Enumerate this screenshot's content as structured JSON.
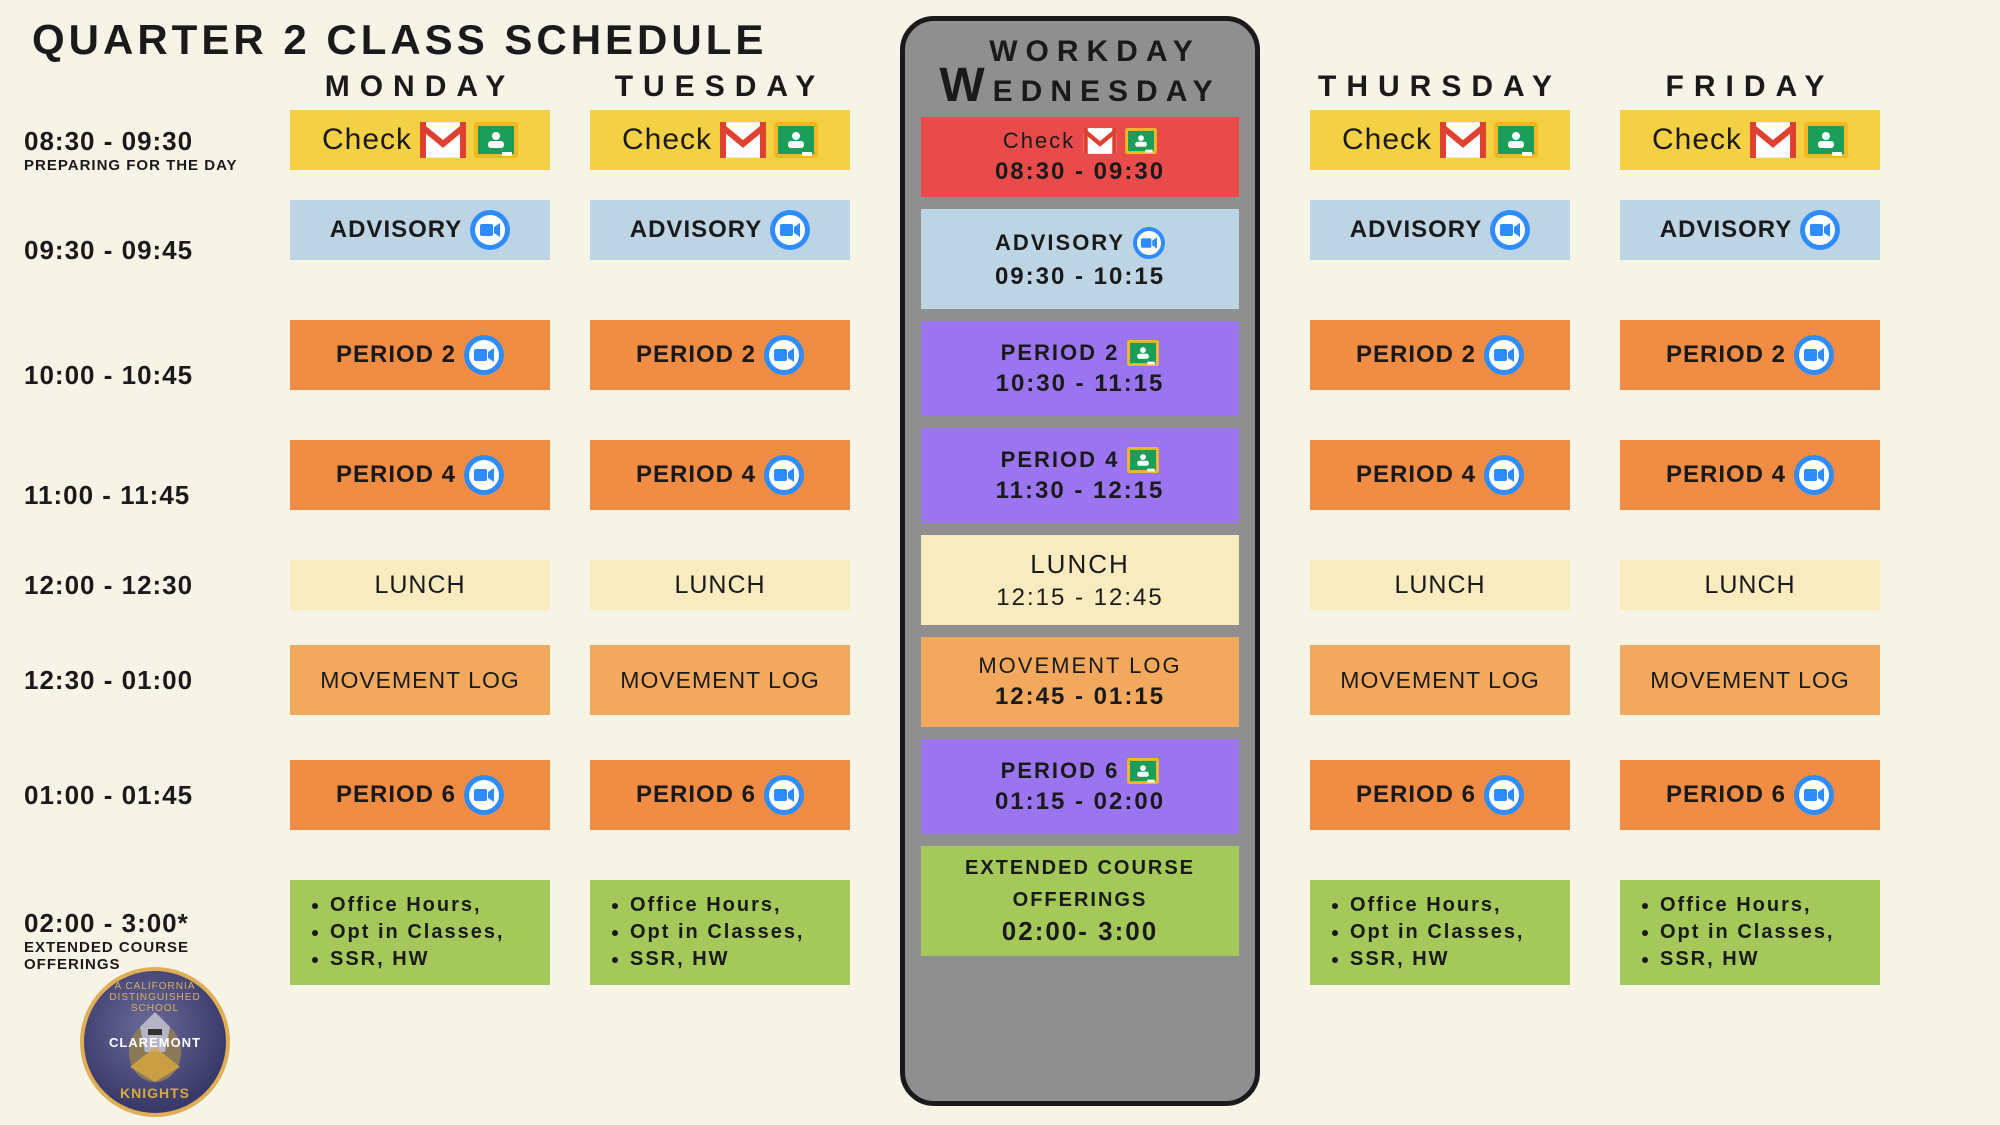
{
  "title": "QUARTER  2  CLASS SCHEDULE",
  "background_color": "#f6f3e7",
  "times": [
    {
      "t": "08:30 - 09:30",
      "sub": "PREPARING FOR THE DAY"
    },
    {
      "t": "09:30 - 09:45",
      "sub": ""
    },
    {
      "t": "10:00 - 10:45",
      "sub": ""
    },
    {
      "t": "11:00 - 11:45",
      "sub": ""
    },
    {
      "t": "12:00 - 12:30",
      "sub": ""
    },
    {
      "t": "12:30 - 01:00",
      "sub": ""
    },
    {
      "t": "01:00 - 01:45",
      "sub": ""
    },
    {
      "t": "02:00 - 3:00*",
      "sub": "EXTENDED COURSE OFFERINGS"
    }
  ],
  "days": {
    "mon": "MONDAY",
    "tue": "TUESDAY",
    "thu": "THURSDAY",
    "fri": "FRIDAY"
  },
  "wed": {
    "line1": "WORKDAY",
    "line2": "EDNESDAY",
    "rows": {
      "check": {
        "label": "Check",
        "time": "08:30 - 09:30",
        "bg": "#e94b4b"
      },
      "advisory": {
        "label": "ADVISORY",
        "time": "09:30 - 10:15",
        "bg": "#bdd4e4"
      },
      "p2": {
        "label": "PERIOD 2",
        "time": "10:30 - 11:15",
        "bg": "#9b75f0"
      },
      "p4": {
        "label": "PERIOD 4",
        "time": "11:30 - 12:15",
        "bg": "#9b75f0"
      },
      "lunch": {
        "label": "LUNCH",
        "time": "12:15 - 12:45",
        "bg": "#f9ebc0"
      },
      "move": {
        "label": "MOVEMENT LOG",
        "time": "12:45 - 01:15",
        "bg": "#f3a95d"
      },
      "p6": {
        "label": "PERIOD 6",
        "time": "01:15 - 02:00",
        "bg": "#9b75f0"
      },
      "ext": {
        "label1": "EXTENDED COURSE",
        "label2": "OFFERINGS",
        "time": "02:00- 3:00",
        "bg": "#a4c85a"
      }
    }
  },
  "row_labels": {
    "check": "Check",
    "advisory": "ADVISORY",
    "p2": "PERIOD 2",
    "p4": "PERIOD 4",
    "lunch": "LUNCH",
    "move": "MOVEMENT LOG",
    "p6": "PERIOD 6",
    "ext_bullets": [
      "Office Hours,",
      "Opt in Classes,",
      "SSR, HW"
    ]
  },
  "colors": {
    "check": "#f4d144",
    "advisory": "#bdd4e4",
    "period": "#f08c44",
    "lunch": "#f9ebc0",
    "movement": "#f3a95d",
    "extended": "#a4c85a",
    "wed_bg": "#8f8f8f",
    "wed_border": "#1a1a1a",
    "wed_period": "#9b75f0",
    "wed_check": "#e94b4b",
    "zoom_blue": "#2e8cff",
    "gmail_red": "#e04030",
    "classroom_green": "#1a9e5a",
    "classroom_border": "#f3b826"
  },
  "logo": {
    "top_text": "A CALIFORNIA DISTINGUISHED SCHOOL",
    "mid_text": "CLAREMONT",
    "bottom_text": "KNIGHTS"
  }
}
